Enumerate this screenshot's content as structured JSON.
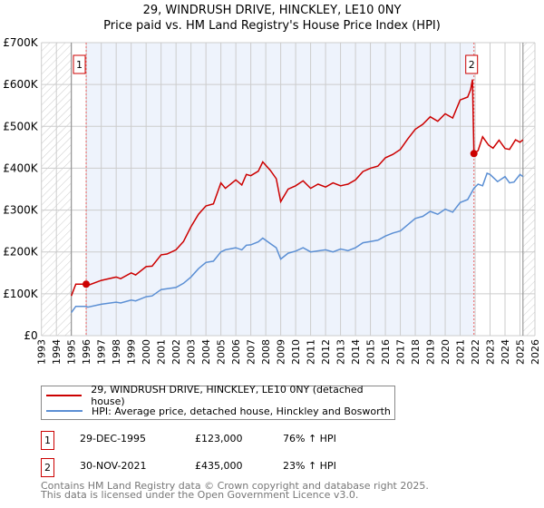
{
  "chart_data": {
    "type": "line",
    "title": "29, WINDRUSH DRIVE, HINCKLEY, LE10 0NY",
    "subtitle": "Price paid vs. HM Land Registry's House Price Index (HPI)",
    "xlim": [
      1993,
      2026
    ],
    "ylim": [
      0,
      700
    ],
    "y_ticks": [
      {
        "v": 0,
        "label": "£0"
      },
      {
        "v": 100,
        "label": "£100K"
      },
      {
        "v": 200,
        "label": "£200K"
      },
      {
        "v": 300,
        "label": "£300K"
      },
      {
        "v": 400,
        "label": "£400K"
      },
      {
        "v": 500,
        "label": "£500K"
      },
      {
        "v": 600,
        "label": "£600K"
      },
      {
        "v": 700,
        "label": "£700K"
      }
    ],
    "x_ticks": [
      "1993",
      "1994",
      "1995",
      "1996",
      "1997",
      "1998",
      "1999",
      "2000",
      "2001",
      "2002",
      "2003",
      "2004",
      "2005",
      "2006",
      "2007",
      "2008",
      "2009",
      "2010",
      "2011",
      "2012",
      "2013",
      "2014",
      "2015",
      "2016",
      "2017",
      "2018",
      "2019",
      "2020",
      "2021",
      "2022",
      "2023",
      "2024",
      "2025",
      "2026"
    ],
    "hatched_before": 1995.0,
    "hatched_after": 2025.2,
    "shaded_range": [
      1995.99,
      2021.92
    ],
    "series": [
      {
        "name": "29, WINDRUSH DRIVE, HINCKLEY, LE10 0NY (detached house)",
        "color": "#cc0000",
        "points": [
          [
            1995.0,
            95
          ],
          [
            1995.3,
            123
          ],
          [
            1995.99,
            123
          ],
          [
            1996.1,
            120
          ],
          [
            1997,
            132
          ],
          [
            1998,
            140
          ],
          [
            1998.3,
            136
          ],
          [
            1999,
            150
          ],
          [
            1999.3,
            145
          ],
          [
            2000,
            165
          ],
          [
            2000.4,
            166
          ],
          [
            2001,
            193
          ],
          [
            2001.4,
            195
          ],
          [
            2002,
            205
          ],
          [
            2002.5,
            225
          ],
          [
            2003,
            260
          ],
          [
            2003.5,
            290
          ],
          [
            2004,
            310
          ],
          [
            2004.5,
            315
          ],
          [
            2005,
            365
          ],
          [
            2005.3,
            352
          ],
          [
            2006,
            372
          ],
          [
            2006.4,
            360
          ],
          [
            2006.7,
            385
          ],
          [
            2007,
            382
          ],
          [
            2007.5,
            393
          ],
          [
            2007.8,
            415
          ],
          [
            2008.3,
            395
          ],
          [
            2008.7,
            375
          ],
          [
            2009,
            320
          ],
          [
            2009.5,
            350
          ],
          [
            2010,
            358
          ],
          [
            2010.5,
            370
          ],
          [
            2011,
            352
          ],
          [
            2011.5,
            362
          ],
          [
            2012,
            355
          ],
          [
            2012.5,
            365
          ],
          [
            2013,
            358
          ],
          [
            2013.5,
            362
          ],
          [
            2014,
            372
          ],
          [
            2014.5,
            392
          ],
          [
            2015,
            400
          ],
          [
            2015.5,
            405
          ],
          [
            2016,
            425
          ],
          [
            2016.5,
            433
          ],
          [
            2017,
            445
          ],
          [
            2017.5,
            470
          ],
          [
            2018,
            493
          ],
          [
            2018.5,
            505
          ],
          [
            2019,
            523
          ],
          [
            2019.5,
            512
          ],
          [
            2020,
            530
          ],
          [
            2020.5,
            520
          ],
          [
            2021,
            563
          ],
          [
            2021.5,
            570
          ],
          [
            2021.7,
            588
          ],
          [
            2021.82,
            612
          ],
          [
            2021.92,
            435
          ],
          [
            2022.2,
            442
          ],
          [
            2022.5,
            475
          ],
          [
            2022.9,
            455
          ],
          [
            2023.2,
            448
          ],
          [
            2023.6,
            467
          ],
          [
            2024,
            447
          ],
          [
            2024.3,
            445
          ],
          [
            2024.7,
            468
          ],
          [
            2025,
            462
          ],
          [
            2025.2,
            468
          ]
        ]
      },
      {
        "name": "HPI: Average price, detached house, Hinckley and Bosworth",
        "color": "#5b8fd4",
        "points": [
          [
            1995.0,
            55
          ],
          [
            1995.3,
            70
          ],
          [
            1995.99,
            70
          ],
          [
            1996.1,
            68
          ],
          [
            1997,
            75
          ],
          [
            1998,
            80
          ],
          [
            1998.3,
            78
          ],
          [
            1999,
            85
          ],
          [
            1999.3,
            83
          ],
          [
            2000,
            93
          ],
          [
            2000.4,
            95
          ],
          [
            2001,
            110
          ],
          [
            2002,
            115
          ],
          [
            2002.5,
            125
          ],
          [
            2003,
            140
          ],
          [
            2003.5,
            160
          ],
          [
            2004,
            175
          ],
          [
            2004.5,
            178
          ],
          [
            2005,
            200
          ],
          [
            2005.3,
            205
          ],
          [
            2006,
            210
          ],
          [
            2006.4,
            205
          ],
          [
            2006.7,
            216
          ],
          [
            2007,
            217
          ],
          [
            2007.5,
            224
          ],
          [
            2007.8,
            233
          ],
          [
            2008.3,
            220
          ],
          [
            2008.7,
            210
          ],
          [
            2009,
            183
          ],
          [
            2009.5,
            197
          ],
          [
            2010,
            202
          ],
          [
            2010.5,
            210
          ],
          [
            2011,
            200
          ],
          [
            2012,
            205
          ],
          [
            2012.5,
            200
          ],
          [
            2013,
            207
          ],
          [
            2013.5,
            203
          ],
          [
            2014,
            210
          ],
          [
            2014.5,
            222
          ],
          [
            2015,
            225
          ],
          [
            2015.5,
            228
          ],
          [
            2016,
            238
          ],
          [
            2016.5,
            245
          ],
          [
            2017,
            250
          ],
          [
            2017.5,
            265
          ],
          [
            2018,
            280
          ],
          [
            2018.5,
            285
          ],
          [
            2019,
            297
          ],
          [
            2019.5,
            290
          ],
          [
            2020,
            302
          ],
          [
            2020.5,
            295
          ],
          [
            2021,
            318
          ],
          [
            2021.5,
            325
          ],
          [
            2021.92,
            352
          ],
          [
            2022.2,
            362
          ],
          [
            2022.5,
            358
          ],
          [
            2022.8,
            388
          ],
          [
            2023,
            385
          ],
          [
            2023.5,
            368
          ],
          [
            2024,
            380
          ],
          [
            2024.3,
            365
          ],
          [
            2024.6,
            367
          ],
          [
            2025,
            385
          ],
          [
            2025.2,
            380
          ]
        ]
      }
    ],
    "sales": [
      {
        "label": "1",
        "x": 1995.99,
        "y": 123
      },
      {
        "label": "2",
        "x": 2021.92,
        "y": 435
      }
    ]
  },
  "legend": {
    "property": "29, WINDRUSH DRIVE, HINCKLEY, LE10 0NY (detached house)",
    "hpi": "HPI: Average price, detached house, Hinckley and Bosworth"
  },
  "transactions": [
    {
      "num": "1",
      "date": "29-DEC-1995",
      "price": "£123,000",
      "hpi": "76% ↑ HPI"
    },
    {
      "num": "2",
      "date": "30-NOV-2021",
      "price": "£435,000",
      "hpi": "23% ↑ HPI"
    }
  ],
  "footer": {
    "line1": "Contains HM Land Registry data © Crown copyright and database right 2025.",
    "line2": "This data is licensed under the Open Government Licence v3.0."
  }
}
